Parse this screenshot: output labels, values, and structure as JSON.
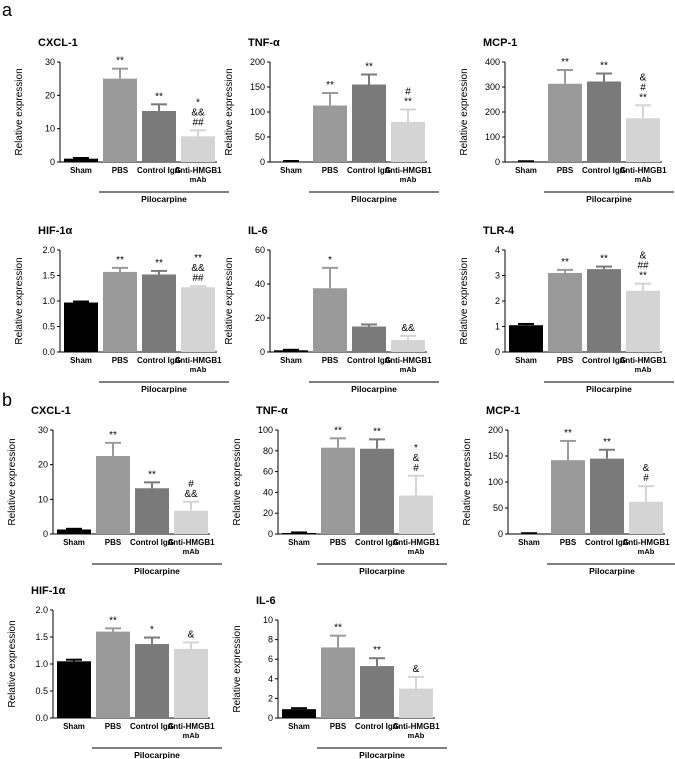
{
  "panel_labels": [
    "a",
    "b"
  ],
  "group_label": "Pilocarpine",
  "colors": {
    "sham": "#000000",
    "pbs": "#9a9a9a",
    "control_igg": "#7a7a7a",
    "anti_hmgb1": "#d4d4d4",
    "axis": "#000000"
  },
  "chart_data": [
    {
      "type": "bar",
      "panel": "a",
      "title": "CXCL-1",
      "ylabel": "Relative expression",
      "categories": [
        "Sham",
        "PBS",
        "Control IgG",
        "Anti-HMGB1 mAb"
      ],
      "values": [
        1,
        25,
        15.3,
        7.7
      ],
      "errors": [
        0.2,
        3,
        2,
        1.8
      ],
      "ylim": [
        0,
        30
      ],
      "yticks": [
        "0",
        "10",
        "20",
        "30"
      ],
      "annotations": [
        [],
        [
          "**"
        ],
        [
          "**"
        ],
        [
          "*",
          "&&",
          "##"
        ]
      ]
    },
    {
      "type": "bar",
      "panel": "a",
      "title": "TNF-α",
      "ylabel": "Relative expression",
      "categories": [
        "Sham",
        "PBS",
        "Control IgG",
        "Anti-HMGB1 mAb"
      ],
      "values": [
        1,
        113,
        155,
        80
      ],
      "errors": [
        1,
        25,
        20,
        25
      ],
      "ylim": [
        0,
        200
      ],
      "yticks": [
        "0",
        "50",
        "100",
        "150",
        "200"
      ],
      "annotations": [
        [],
        [
          "**"
        ],
        [
          "**"
        ],
        [
          "#",
          "**"
        ]
      ]
    },
    {
      "type": "bar",
      "panel": "a",
      "title": "MCP-1",
      "ylabel": "Relative expression",
      "categories": [
        "Sham",
        "PBS",
        "Control IgG",
        "Anti-HMGB1 mAb"
      ],
      "values": [
        2,
        313,
        322,
        175
      ],
      "errors": [
        1,
        55,
        32,
        52
      ],
      "ylim": [
        0,
        400
      ],
      "yticks": [
        "0",
        "100",
        "200",
        "300",
        "400"
      ],
      "annotations": [
        [],
        [
          "**"
        ],
        [
          "**"
        ],
        [
          "&",
          "#",
          "**"
        ]
      ]
    },
    {
      "type": "bar",
      "panel": "a",
      "title": "HIF-1α",
      "ylabel": "Relative expression",
      "categories": [
        "Sham",
        "PBS",
        "Control IgG",
        "Anti-HMGB1 mAb"
      ],
      "values": [
        0.97,
        1.57,
        1.52,
        1.27
      ],
      "errors": [
        0.02,
        0.08,
        0.07,
        0.02
      ],
      "ylim": [
        0,
        2.0
      ],
      "yticks": [
        "0.0",
        "0.5",
        "1.0",
        "1.5",
        "2.0"
      ],
      "annotations": [
        [],
        [
          "**"
        ],
        [
          "**"
        ],
        [
          "**",
          "&&",
          "##"
        ]
      ]
    },
    {
      "type": "bar",
      "panel": "a",
      "title": "IL-6",
      "ylabel": "Relative expression",
      "categories": [
        "Sham",
        "PBS",
        "Control IgG",
        "Anti-HMGB1 mAb"
      ],
      "values": [
        1,
        37.5,
        15,
        7
      ],
      "errors": [
        0.3,
        12,
        1.2,
        2.5
      ],
      "ylim": [
        0,
        60
      ],
      "yticks": [
        "0",
        "20",
        "40",
        "60"
      ],
      "annotations": [
        [],
        [
          "*"
        ],
        [],
        [
          "&&"
        ]
      ]
    },
    {
      "type": "bar",
      "panel": "a",
      "title": "TLR-4",
      "ylabel": "Relative expression",
      "categories": [
        "Sham",
        "PBS",
        "Control IgG",
        "Anti-HMGB1 mAb"
      ],
      "values": [
        1.05,
        3.1,
        3.25,
        2.4
      ],
      "errors": [
        0.05,
        0.12,
        0.1,
        0.28
      ],
      "ylim": [
        0,
        4
      ],
      "yticks": [
        "0",
        "1",
        "2",
        "3",
        "4"
      ],
      "annotations": [
        [],
        [
          "**"
        ],
        [
          "**"
        ],
        [
          "&",
          "##",
          "**"
        ]
      ]
    },
    {
      "type": "bar",
      "panel": "b",
      "title": "CXCL-1",
      "ylabel": "Relative expression",
      "categories": [
        "Sham",
        "PBS",
        "Control IgG",
        "Anti-HMGB1 mAb"
      ],
      "values": [
        1.3,
        22.5,
        13.2,
        6.7
      ],
      "errors": [
        0.2,
        3.8,
        1.7,
        2.6
      ],
      "ylim": [
        0,
        30
      ],
      "yticks": [
        "0",
        "10",
        "20",
        "30"
      ],
      "annotations": [
        [],
        [
          "**"
        ],
        [
          "**"
        ],
        [
          "#",
          "&&"
        ]
      ]
    },
    {
      "type": "bar",
      "panel": "b",
      "title": "TNF-α",
      "ylabel": "Relative expression",
      "categories": [
        "Sham",
        "PBS",
        "Control IgG",
        "Anti-HMGB1 mAb"
      ],
      "values": [
        1,
        83,
        82,
        37
      ],
      "errors": [
        0.5,
        9,
        9,
        19
      ],
      "ylim": [
        0,
        100
      ],
      "yticks": [
        "0",
        "20",
        "40",
        "60",
        "80",
        "100"
      ],
      "annotations": [
        [],
        [
          "**"
        ],
        [
          "**"
        ],
        [
          "*",
          "&",
          "#"
        ]
      ]
    },
    {
      "type": "bar",
      "panel": "b",
      "title": "MCP-1",
      "ylabel": "Relative expression",
      "categories": [
        "Sham",
        "PBS",
        "Control IgG",
        "Anti-HMGB1 mAb"
      ],
      "values": [
        1,
        142,
        145,
        62
      ],
      "errors": [
        0.5,
        37,
        17,
        30
      ],
      "ylim": [
        0,
        200
      ],
      "yticks": [
        "0",
        "50",
        "100",
        "150",
        "200"
      ],
      "annotations": [
        [],
        [
          "**"
        ],
        [
          "**"
        ],
        [
          "&",
          "#"
        ]
      ]
    },
    {
      "type": "bar",
      "panel": "b",
      "title": "HIF-1α",
      "ylabel": "Relative expression",
      "categories": [
        "Sham",
        "PBS",
        "Control IgG",
        "Anti-HMGB1 mAb"
      ],
      "values": [
        1.05,
        1.6,
        1.37,
        1.28
      ],
      "errors": [
        0.03,
        0.06,
        0.12,
        0.12
      ],
      "ylim": [
        0,
        2.0
      ],
      "yticks": [
        "0.0",
        "0.5",
        "1.0",
        "1.5",
        "2.0"
      ],
      "annotations": [
        [],
        [
          "**"
        ],
        [
          "*"
        ],
        [
          "&"
        ]
      ]
    },
    {
      "type": "bar",
      "panel": "b",
      "title": "IL-6",
      "ylabel": "Relative expression",
      "categories": [
        "Sham",
        "PBS",
        "Control IgG",
        "Anti-HMGB1 mAb"
      ],
      "values": [
        0.9,
        7.2,
        5.3,
        3
      ],
      "errors": [
        0.1,
        1.2,
        0.8,
        1.2
      ],
      "ylim": [
        0,
        10
      ],
      "yticks": [
        "0",
        "2",
        "4",
        "6",
        "8",
        "10"
      ],
      "annotations": [
        [],
        [
          "**"
        ],
        [
          "**"
        ],
        [
          "&"
        ]
      ]
    }
  ]
}
